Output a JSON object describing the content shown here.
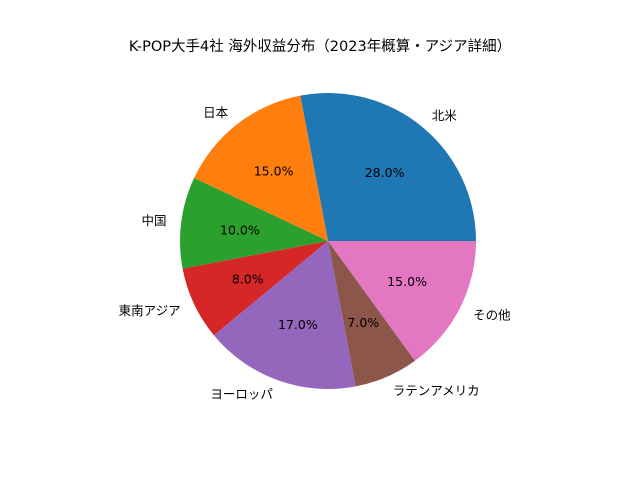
{
  "chart_data": {
    "type": "pie",
    "title": "K-POP大手4社 海外収益分布（2023年概算・アジア詳細）",
    "categories": [
      "北米",
      "日本",
      "中国",
      "東南アジア",
      "ヨーロッパ",
      "ラテンアメリカ",
      "その他"
    ],
    "values": [
      28.0,
      15.0,
      10.0,
      8.0,
      17.0,
      7.0,
      15.0
    ],
    "value_labels": [
      "28.0%",
      "15.0%",
      "10.0%",
      "8.0%",
      "17.0%",
      "7.0%",
      "15.0%"
    ],
    "colors": [
      "#1f77b4",
      "#ff7f0e",
      "#2ca02c",
      "#d62728",
      "#9467bd",
      "#8c564b",
      "#e377c2"
    ],
    "start_angle_deg": 0,
    "direction": "counterclockwise",
    "legend": "none"
  }
}
